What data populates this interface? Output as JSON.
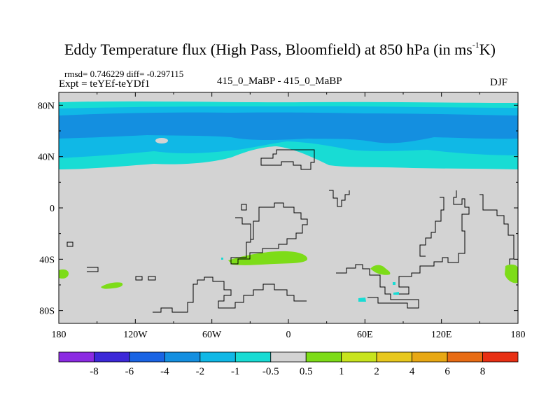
{
  "title": {
    "main": "Eddy Temperature flux (High Pass, Bloomfield) at 850 hPa (in ms",
    "sup": "-1",
    "tail": "K)"
  },
  "stats": {
    "rmsd_line": "rmsd= 0.746229 diff= -0.297115",
    "expt_line": "Expt = teYEf-teYDf1"
  },
  "center_label": "415_0_MaBP - 415_0_MaBP",
  "season": "DJF",
  "map": {
    "lat_ticks": [
      {
        "lat": 80,
        "label": "80N"
      },
      {
        "lat": 40,
        "label": "40N"
      },
      {
        "lat": 0,
        "label": "0"
      },
      {
        "lat": -40,
        "label": "40S"
      },
      {
        "lat": -80,
        "label": "80S"
      }
    ],
    "lon_ticks": [
      {
        "lon": -180,
        "label": "180"
      },
      {
        "lon": -120,
        "label": "120W"
      },
      {
        "lon": -60,
        "label": "60W"
      },
      {
        "lon": 0,
        "label": "0"
      },
      {
        "lon": 60,
        "label": "60E"
      },
      {
        "lon": 120,
        "label": "120E"
      },
      {
        "lon": 180,
        "label": "180"
      }
    ],
    "background_color": "#d3d3d3"
  },
  "colorbar": {
    "colors": [
      "#8b2be2",
      "#3c28d8",
      "#1a64e4",
      "#148fe0",
      "#10b8e6",
      "#18dcd4",
      "#d3d3d3",
      "#7ddc18",
      "#c8e41e",
      "#e8c81e",
      "#e8a814",
      "#e86c14",
      "#e83014"
    ],
    "labels": [
      "-8",
      "-6",
      "-4",
      "-2",
      "-1",
      "-0.5",
      "0.5",
      "1",
      "2",
      "4",
      "6",
      "8"
    ]
  }
}
